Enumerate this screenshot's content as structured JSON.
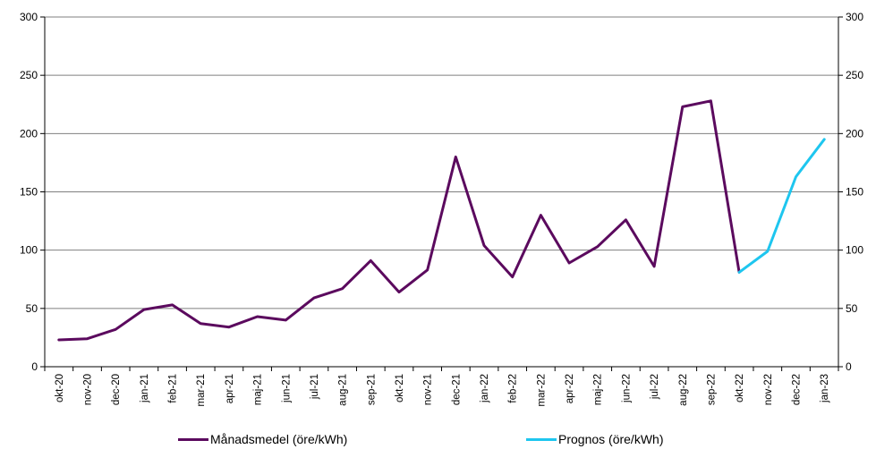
{
  "chart_data": {
    "type": "line",
    "categories": [
      "okt-20",
      "nov-20",
      "dec-20",
      "jan-21",
      "feb-21",
      "mar-21",
      "apr-21",
      "maj-21",
      "jun-21",
      "jul-21",
      "aug-21",
      "sep-21",
      "okt-21",
      "nov-21",
      "dec-21",
      "jan-22",
      "feb-22",
      "mar-22",
      "apr-22",
      "maj-22",
      "jun-22",
      "jul-22",
      "aug-22",
      "sep-22",
      "okt-22",
      "nov-22",
      "dec-22",
      "jan-23"
    ],
    "series": [
      {
        "name": "Månadsmedel (öre/kWh)",
        "color": "#5b0a5e",
        "values": [
          23,
          24,
          32,
          49,
          53,
          37,
          34,
          43,
          40,
          59,
          67,
          91,
          64,
          83,
          180,
          104,
          77,
          130,
          89,
          103,
          126,
          86,
          223,
          228,
          81,
          null,
          null,
          null
        ]
      },
      {
        "name": "Prognos (öre/kWh)",
        "color": "#1ec6ef",
        "values": [
          null,
          null,
          null,
          null,
          null,
          null,
          null,
          null,
          null,
          null,
          null,
          null,
          null,
          null,
          null,
          null,
          null,
          null,
          null,
          null,
          null,
          null,
          null,
          null,
          81,
          99,
          163,
          195
        ]
      }
    ],
    "ylim": [
      0,
      300
    ],
    "yticks": [
      0,
      50,
      100,
      150,
      200,
      250,
      300
    ],
    "grid": true,
    "secondary_axis": true,
    "legend_position": "bottom"
  }
}
